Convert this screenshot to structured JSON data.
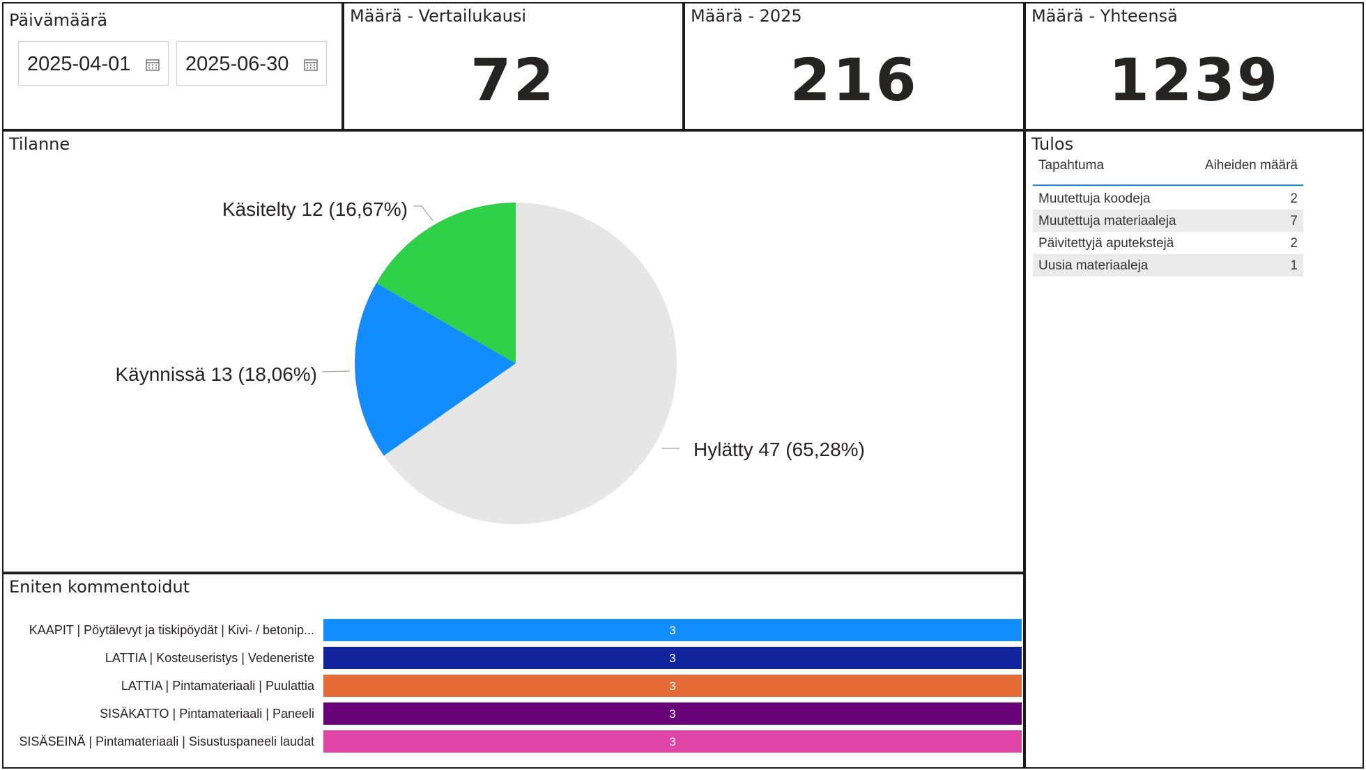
{
  "date_slicer": {
    "title": "Päivämäärä",
    "start": "2025-04-01",
    "end": "2025-06-30"
  },
  "cards": [
    {
      "title": "Määrä - Vertailukausi",
      "value": "72"
    },
    {
      "title": "Määrä - 2025",
      "value": "216"
    },
    {
      "title": "Määrä - Yhteensä",
      "value": "1239"
    }
  ],
  "pie": {
    "title": "Tilanne",
    "chart_data_ref": "chart_data.0"
  },
  "table": {
    "title": "Tulos",
    "headers": [
      "Tapahtuma",
      "Aiheiden määrä"
    ],
    "rows": [
      {
        "label": "Muutettuja koodeja",
        "value": "2"
      },
      {
        "label": "Muutettuja materiaaleja",
        "value": "7"
      },
      {
        "label": "Päivitettyjä aputekstejä",
        "value": "2"
      },
      {
        "label": "Uusia materiaaleja",
        "value": "1"
      }
    ]
  },
  "bars": {
    "title": "Eniten kommentoidut"
  },
  "chart_data": [
    {
      "type": "pie",
      "title": "Tilanne",
      "slices": [
        {
          "label": "Hylätty",
          "value": 47,
          "percent": "65,28%",
          "text": "Hylätty 47 (65,28%)",
          "color": "#E6E6E6"
        },
        {
          "label": "Käynnissä",
          "value": 13,
          "percent": "18,06%",
          "text": "Käynnissä 13 (18,06%)",
          "color": "#118DFF"
        },
        {
          "label": "Käsitelty",
          "value": 12,
          "percent": "16,67%",
          "text": "Käsitelty 12 (16,67%)",
          "color": "#2ED147"
        }
      ]
    },
    {
      "type": "bar",
      "orientation": "horizontal",
      "title": "Eniten kommentoidut",
      "categories": [
        "KAAPIT | Pöytälevyt ja tiskipöydät | Kivi- / betonip...",
        "LATTIA | Kosteuseristys | Vedeneriste",
        "LATTIA | Pintamateriaali | Puulattia",
        "SISÄKATTO | Pintamateriaali | Paneeli",
        "SISÄSEINÄ | Pintamateriaali | Sisustuspaneeli laudat"
      ],
      "values": [
        3,
        3,
        3,
        3,
        3
      ],
      "colors": [
        "#118DFF",
        "#12239E",
        "#E66C37",
        "#6B007B",
        "#E044A7"
      ],
      "xlim": [
        0,
        3
      ]
    }
  ]
}
